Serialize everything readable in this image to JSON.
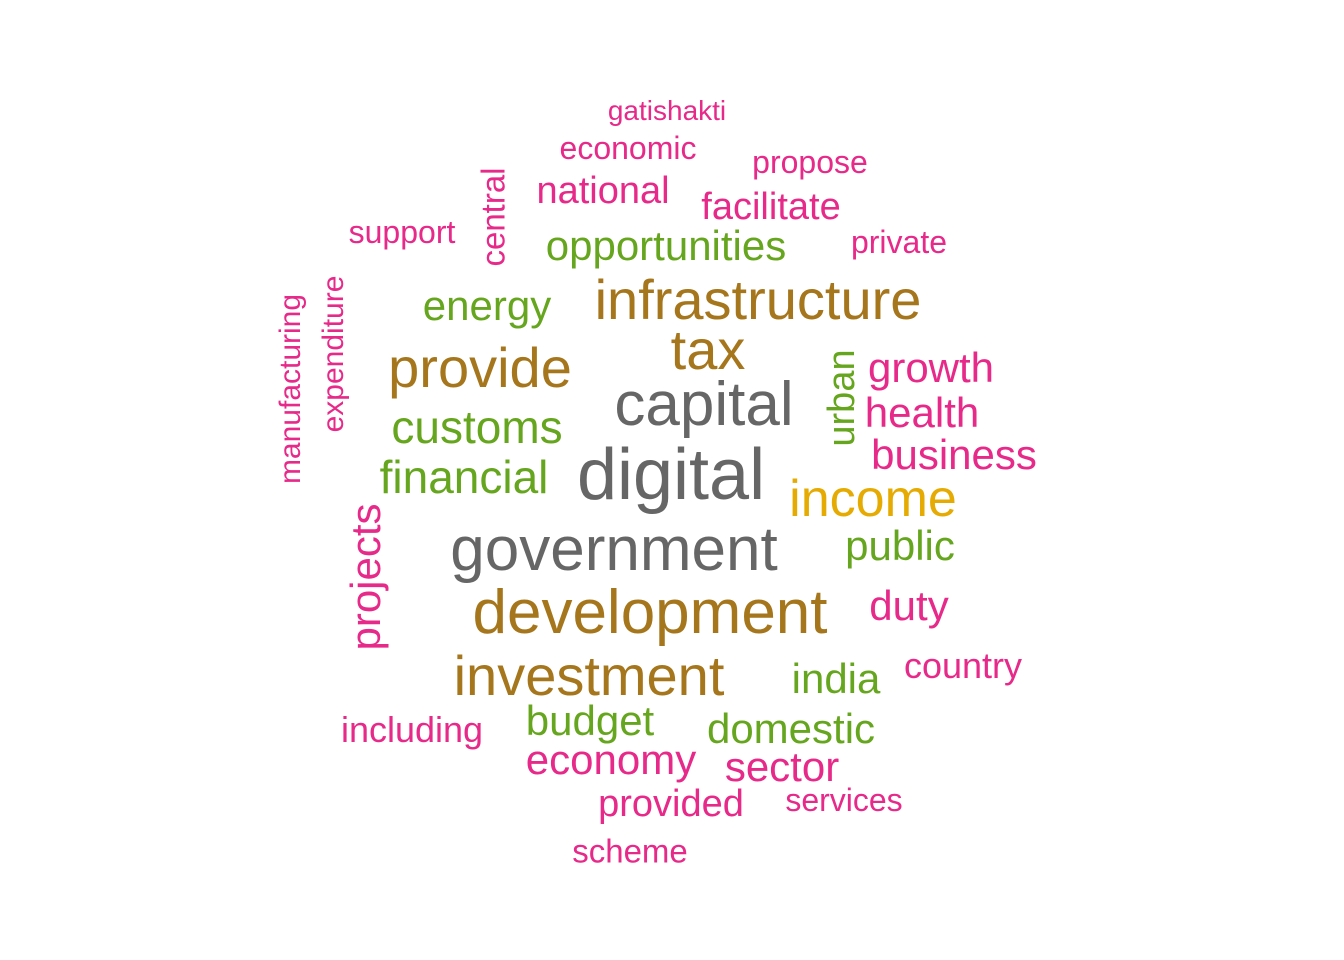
{
  "palette": {
    "gray": "#666666",
    "brown": "#a6761d",
    "gold": "#e6ab02",
    "green": "#66a61e",
    "magenta": "#e7298a"
  },
  "words": [
    {
      "text": "gatishakti",
      "color": "#e7298a"
    },
    {
      "text": "economic",
      "color": "#e7298a"
    },
    {
      "text": "propose",
      "color": "#e7298a"
    },
    {
      "text": "national",
      "color": "#e7298a"
    },
    {
      "text": "facilitate",
      "color": "#e7298a"
    },
    {
      "text": "central",
      "color": "#e7298a"
    },
    {
      "text": "support",
      "color": "#e7298a"
    },
    {
      "text": "opportunities",
      "color": "#66a61e"
    },
    {
      "text": "private",
      "color": "#e7298a"
    },
    {
      "text": "manufacturing",
      "color": "#e7298a"
    },
    {
      "text": "expenditure",
      "color": "#e7298a"
    },
    {
      "text": "energy",
      "color": "#66a61e"
    },
    {
      "text": "infrastructure",
      "color": "#a6761d"
    },
    {
      "text": "tax",
      "color": "#a6761d"
    },
    {
      "text": "provide",
      "color": "#a6761d"
    },
    {
      "text": "urban",
      "color": "#66a61e"
    },
    {
      "text": "growth",
      "color": "#e7298a"
    },
    {
      "text": "capital",
      "color": "#666666"
    },
    {
      "text": "customs",
      "color": "#66a61e"
    },
    {
      "text": "health",
      "color": "#e7298a"
    },
    {
      "text": "business",
      "color": "#e7298a"
    },
    {
      "text": "financial",
      "color": "#66a61e"
    },
    {
      "text": "digital",
      "color": "#666666"
    },
    {
      "text": "income",
      "color": "#e6ab02"
    },
    {
      "text": "projects",
      "color": "#e7298a"
    },
    {
      "text": "government",
      "color": "#666666"
    },
    {
      "text": "public",
      "color": "#66a61e"
    },
    {
      "text": "development",
      "color": "#a6761d"
    },
    {
      "text": "duty",
      "color": "#e7298a"
    },
    {
      "text": "investment",
      "color": "#a6761d"
    },
    {
      "text": "india",
      "color": "#66a61e"
    },
    {
      "text": "country",
      "color": "#e7298a"
    },
    {
      "text": "including",
      "color": "#e7298a"
    },
    {
      "text": "budget",
      "color": "#66a61e"
    },
    {
      "text": "domestic",
      "color": "#66a61e"
    },
    {
      "text": "economy",
      "color": "#e7298a"
    },
    {
      "text": "sector",
      "color": "#e7298a"
    },
    {
      "text": "provided",
      "color": "#e7298a"
    },
    {
      "text": "services",
      "color": "#e7298a"
    },
    {
      "text": "scheme",
      "color": "#e7298a"
    }
  ]
}
